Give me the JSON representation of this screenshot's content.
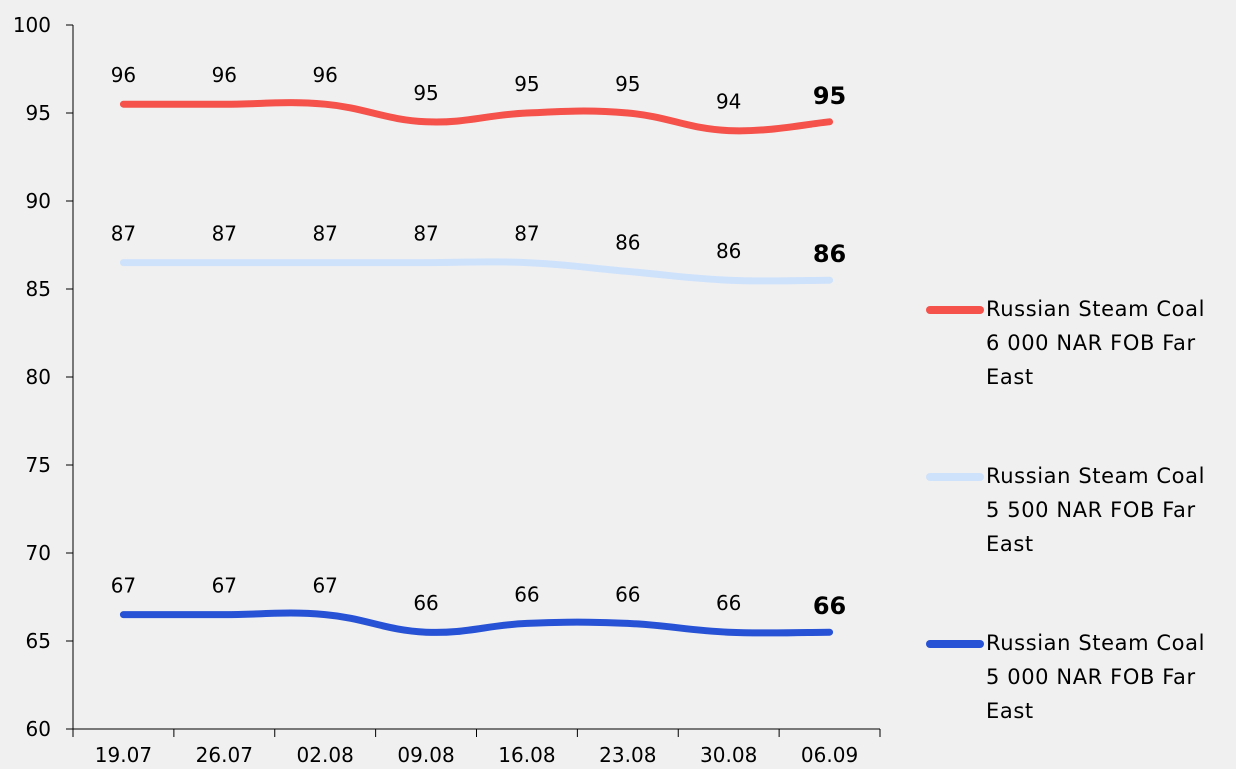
{
  "chart_data": {
    "type": "line",
    "categories": [
      "19.07",
      "26.07",
      "02.08",
      "09.08",
      "16.08",
      "23.08",
      "30.08",
      "06.09"
    ],
    "ylim": [
      60,
      100
    ],
    "yticks": [
      60,
      65,
      70,
      75,
      80,
      85,
      90,
      95,
      100
    ],
    "grid": false,
    "legend_position": "right",
    "series": [
      {
        "name": "Russian Steam Coal 6 000 NAR  FOB Far East",
        "color": "#f5524b",
        "values": [
          95.5,
          95.5,
          95.5,
          94.5,
          95.0,
          95.0,
          94.0,
          94.5
        ],
        "labels": [
          "96",
          "96",
          "96",
          "95",
          "95",
          "95",
          "94",
          "95"
        ]
      },
      {
        "name": "Russian Steam Coal 5 500 NAR  FOB Far East",
        "color": "#cfe2fb",
        "values": [
          86.5,
          86.5,
          86.5,
          86.5,
          86.5,
          86.0,
          85.5,
          85.5
        ],
        "labels": [
          "87",
          "87",
          "87",
          "87",
          "87",
          "86",
          "86",
          "86"
        ]
      },
      {
        "name": "Russian Steam Coal 5 000 NAR  FOB Far East",
        "color": "#2752d6",
        "values": [
          66.5,
          66.5,
          66.5,
          65.5,
          66.0,
          66.0,
          65.5,
          65.5
        ],
        "labels": [
          "67",
          "67",
          "67",
          "66",
          "66",
          "66",
          "66",
          "66"
        ]
      }
    ]
  },
  "legend": {
    "items": [
      {
        "line1": "Russian Steam Coal",
        "line2": "6 000 NAR  FOB Far",
        "line3": "East"
      },
      {
        "line1": "Russian Steam Coal",
        "line2": "5 500 NAR  FOB Far",
        "line3": "East"
      },
      {
        "line1": "Russian Steam Coal",
        "line2": "5 000 NAR  FOB Far",
        "line3": "East"
      }
    ]
  }
}
